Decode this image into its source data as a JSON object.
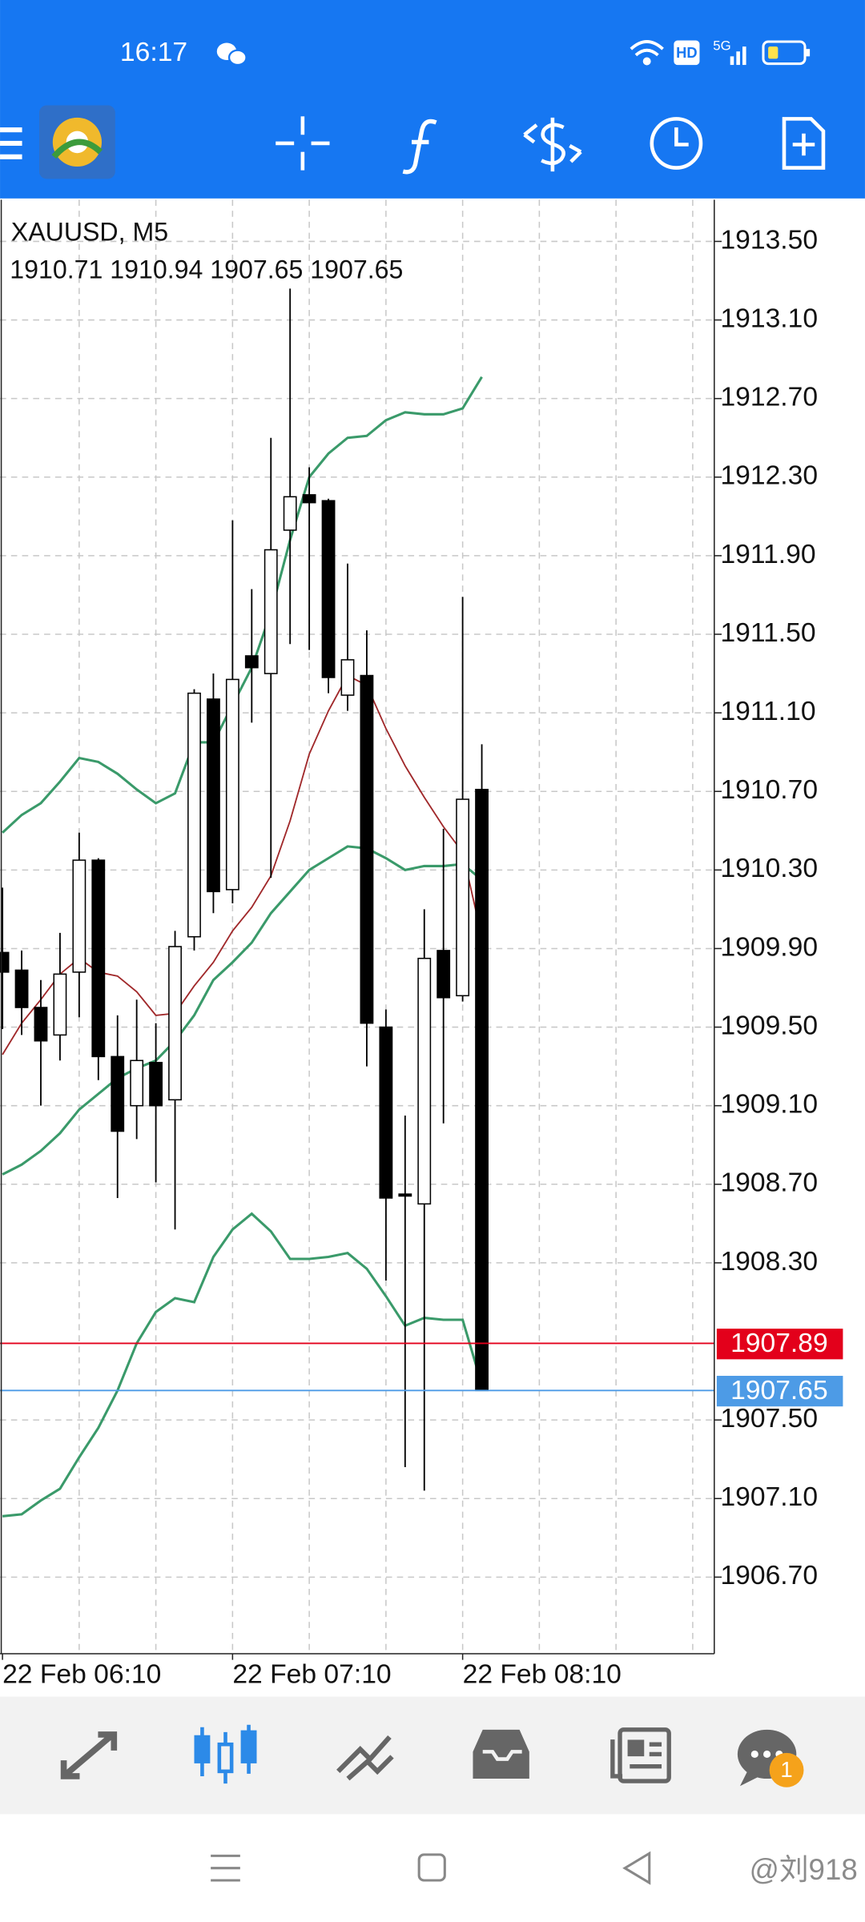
{
  "status_bar": {
    "time": "16:17",
    "hd": "HD",
    "network": "5G"
  },
  "chart_data": {
    "type": "candlestick",
    "symbol": "XAUUSD, M5",
    "categories": [
      "22 Feb 06:10",
      null,
      null,
      null,
      null,
      null,
      null,
      null,
      null,
      null,
      null,
      null,
      "22 Feb 07:10",
      null,
      null,
      null,
      null,
      null,
      null,
      null,
      null,
      null,
      null,
      null,
      "22 Feb 08:10",
      null
    ],
    "open": [
      1909.88,
      1909.79,
      1909.6,
      1909.46,
      1909.78,
      1910.35,
      1909.35,
      1909.1,
      1909.32,
      1909.13,
      1909.96,
      1911.17,
      1910.2,
      1911.39,
      1911.3,
      1912.03,
      1912.21,
      1912.18,
      1911.19,
      1911.29,
      1909.5,
      1908.65,
      1908.6,
      1909.89,
      1909.66,
      1910.71
    ],
    "high": [
      1910.21,
      1909.89,
      1909.74,
      1909.98,
      1910.49,
      1910.36,
      1909.56,
      1909.64,
      1909.52,
      1909.99,
      1911.22,
      1911.3,
      1912.08,
      1911.73,
      1912.5,
      1913.26,
      1912.35,
      1912.19,
      1911.86,
      1911.52,
      1909.59,
      1909.05,
      1910.1,
      1910.51,
      1911.69,
      1910.94
    ],
    "low": [
      1909.49,
      1909.46,
      1909.1,
      1909.33,
      1909.55,
      1909.23,
      1908.63,
      1908.93,
      1908.71,
      1908.47,
      1909.89,
      1910.08,
      1910.13,
      1911.05,
      1910.26,
      1911.45,
      1911.42,
      1911.2,
      1911.11,
      1909.3,
      1908.21,
      1907.26,
      1907.14,
      1909.01,
      1909.63,
      1907.65
    ],
    "close": [
      1909.78,
      1909.6,
      1909.43,
      1909.77,
      1910.35,
      1909.35,
      1908.97,
      1909.33,
      1909.1,
      1909.91,
      1911.2,
      1910.19,
      1911.27,
      1911.33,
      1911.93,
      1912.2,
      1912.17,
      1911.28,
      1911.37,
      1909.52,
      1908.63,
      1908.64,
      1909.85,
      1909.65,
      1910.66,
      1907.65
    ],
    "overlays": [
      {
        "color": "#3a9a6a",
        "values": [
          1910.49,
          1910.58,
          1910.64,
          1910.75,
          1910.87,
          1910.85,
          1910.79,
          1910.71,
          1910.64,
          1910.69,
          1910.95,
          1910.95,
          1911.14,
          1911.33,
          1911.61,
          1911.98,
          1912.3,
          1912.42,
          1912.5,
          1912.51,
          1912.59,
          1912.63,
          1912.62,
          1912.62,
          1912.65,
          1912.81
        ]
      },
      {
        "color": "#3a9a6a",
        "values": [
          1908.75,
          1908.8,
          1908.87,
          1908.96,
          1909.08,
          1909.16,
          1909.24,
          1909.29,
          1909.33,
          1909.43,
          1909.56,
          1909.74,
          1909.83,
          1909.93,
          1910.08,
          1910.19,
          1910.3,
          1910.36,
          1910.42,
          1910.41,
          1910.36,
          1910.3,
          1910.32,
          1910.32,
          1910.33,
          1910.25
        ]
      },
      {
        "color": "#3a9a6a",
        "values": [
          1907.01,
          1907.02,
          1907.09,
          1907.15,
          1907.31,
          1907.46,
          1907.65,
          1907.89,
          1908.05,
          1908.12,
          1908.1,
          1908.33,
          1908.47,
          1908.55,
          1908.46,
          1908.32,
          1908.32,
          1908.33,
          1908.35,
          1908.27,
          1908.13,
          1907.98,
          1908.02,
          1908.01,
          1908.01,
          1907.68
        ]
      },
      {
        "color": "#a0282a",
        "values": [
          1909.36,
          1909.52,
          1909.64,
          1909.77,
          1909.85,
          1909.78,
          1909.76,
          1909.68,
          1909.56,
          1909.57,
          1909.71,
          1909.83,
          1909.99,
          1910.11,
          1910.27,
          1910.55,
          1910.89,
          1911.11,
          1911.29,
          1911.24,
          1911.02,
          1910.83,
          1910.67,
          1910.52,
          1910.39,
          1909.96
        ]
      }
    ],
    "price_lines": [
      {
        "value": 1907.89,
        "color": "#e3001b"
      },
      {
        "value": 1907.65,
        "color": "#4d9be6"
      }
    ],
    "ylim": [
      1906.31,
      1913.7
    ],
    "yticks": [
      {
        "value": 1913.5,
        "label": "1913.50"
      },
      {
        "value": 1913.1,
        "label": "1913.10"
      },
      {
        "value": 1912.7,
        "label": "1912.70"
      },
      {
        "value": 1912.3,
        "label": "1912.30"
      },
      {
        "value": 1911.9,
        "label": "1911.90"
      },
      {
        "value": 1911.5,
        "label": "1911.50"
      },
      {
        "value": 1911.1,
        "label": "1911.10"
      },
      {
        "value": 1910.7,
        "label": "1910.70"
      },
      {
        "value": 1910.3,
        "label": "1910.30"
      },
      {
        "value": 1909.9,
        "label": "1909.90"
      },
      {
        "value": 1909.5,
        "label": "1909.50"
      },
      {
        "value": 1909.1,
        "label": "1909.10"
      },
      {
        "value": 1908.7,
        "label": "1908.70"
      },
      {
        "value": 1908.3,
        "label": "1908.30"
      },
      {
        "value": 1907.5,
        "label": "1907.50"
      },
      {
        "value": 1907.1,
        "label": "1907.10"
      },
      {
        "value": 1906.7,
        "label": "1906.70"
      }
    ],
    "grid": true
  },
  "bottom_nav": {
    "badge": 1
  },
  "watermark": "@刘918"
}
